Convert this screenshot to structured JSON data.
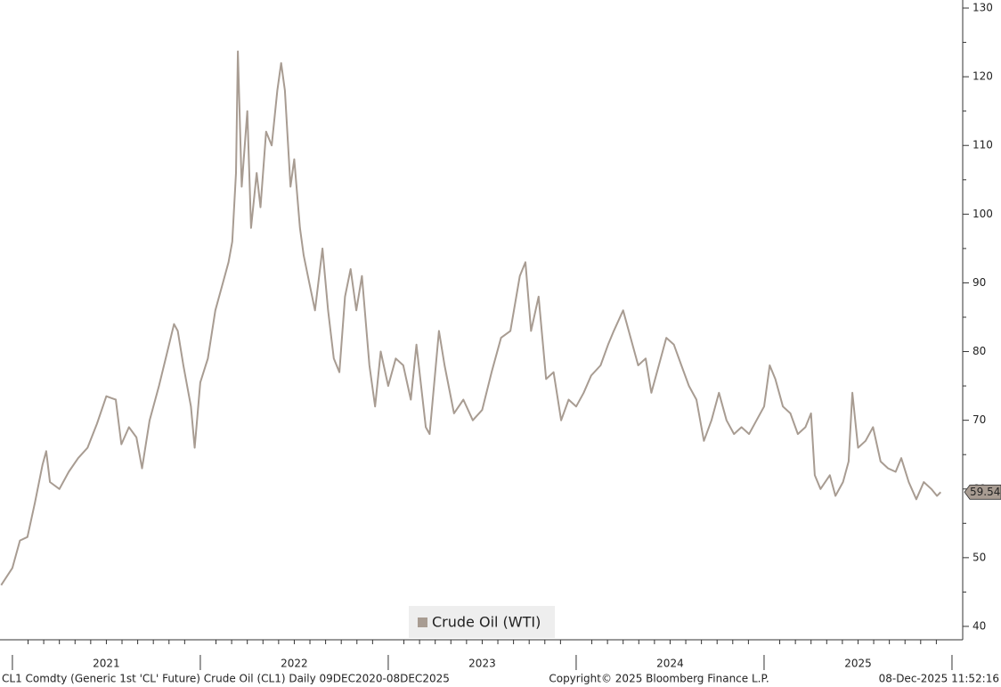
{
  "chart_data": {
    "type": "line",
    "x": [
      2020.94,
      2021.0,
      2021.04,
      2021.08,
      2021.12,
      2021.16,
      2021.18,
      2021.2,
      2021.25,
      2021.3,
      2021.35,
      2021.4,
      2021.45,
      2021.5,
      2021.55,
      2021.58,
      2021.62,
      2021.66,
      2021.69,
      2021.73,
      2021.78,
      2021.82,
      2021.86,
      2021.88,
      2021.91,
      2021.95,
      2021.97,
      2022.0,
      2022.04,
      2022.08,
      2022.12,
      2022.15,
      2022.17,
      2022.19,
      2022.2,
      2022.22,
      2022.25,
      2022.27,
      2022.3,
      2022.32,
      2022.35,
      2022.38,
      2022.41,
      2022.43,
      2022.45,
      2022.48,
      2022.5,
      2022.53,
      2022.55,
      2022.58,
      2022.61,
      2022.65,
      2022.68,
      2022.71,
      2022.74,
      2022.77,
      2022.8,
      2022.83,
      2022.86,
      2022.9,
      2022.93,
      2022.96,
      2023.0,
      2023.04,
      2023.08,
      2023.12,
      2023.15,
      2023.2,
      2023.22,
      2023.25,
      2023.27,
      2023.3,
      2023.35,
      2023.4,
      2023.45,
      2023.5,
      2023.55,
      2023.6,
      2023.65,
      2023.7,
      2023.73,
      2023.76,
      2023.8,
      2023.84,
      2023.88,
      2023.92,
      2023.96,
      2024.0,
      2024.04,
      2024.08,
      2024.13,
      2024.17,
      2024.2,
      2024.25,
      2024.28,
      2024.33,
      2024.37,
      2024.4,
      2024.44,
      2024.48,
      2024.52,
      2024.56,
      2024.6,
      2024.64,
      2024.68,
      2024.72,
      2024.76,
      2024.8,
      2024.84,
      2024.88,
      2024.92,
      2024.96,
      2025.0,
      2025.03,
      2025.06,
      2025.1,
      2025.14,
      2025.18,
      2025.22,
      2025.25,
      2025.27,
      2025.3,
      2025.35,
      2025.38,
      2025.42,
      2025.45,
      2025.47,
      2025.5,
      2025.54,
      2025.58,
      2025.62,
      2025.66,
      2025.7,
      2025.73,
      2025.77,
      2025.81,
      2025.85,
      2025.89,
      2025.92,
      2025.94
    ],
    "series": [
      {
        "name": "Crude Oil (WTI)",
        "color": "#a89c92",
        "values": [
          46,
          48.5,
          52.5,
          53,
          58,
          63.5,
          65.5,
          61,
          60,
          62.5,
          64.5,
          66,
          69.5,
          73.5,
          73,
          66.5,
          69,
          67.5,
          63,
          70,
          75,
          79.5,
          84,
          83,
          78,
          72,
          66,
          75.5,
          79,
          86,
          90,
          93,
          96,
          106,
          123.7,
          104,
          115,
          98,
          106,
          101,
          112,
          110,
          118,
          122,
          118,
          104,
          108,
          98,
          94,
          90,
          86,
          95,
          86,
          79,
          77,
          88,
          92,
          86,
          91,
          78,
          72,
          80,
          75,
          79,
          78,
          73,
          81,
          69,
          68,
          77,
          83,
          78,
          71,
          73,
          70,
          71.5,
          77,
          82,
          83,
          91,
          93,
          83,
          88,
          76,
          77,
          70,
          73,
          72,
          74,
          76.5,
          78,
          81,
          83,
          86,
          83,
          78,
          79,
          74,
          78,
          82,
          81,
          78,
          75,
          73,
          67,
          70,
          74,
          70,
          68,
          69,
          68,
          70,
          72,
          78,
          76,
          72,
          71,
          68,
          69,
          71,
          62,
          60,
          62,
          59,
          61,
          64,
          74,
          66,
          67,
          69,
          64,
          63,
          62.5,
          64.5,
          61,
          58.5,
          61,
          60,
          59,
          59.54
        ]
      }
    ],
    "xlim": [
      2020.934,
      2026.057
    ],
    "xticks": [
      {
        "value": 2021.5,
        "label": "2021"
      },
      {
        "value": 2022.5,
        "label": "2022"
      },
      {
        "value": 2023.5,
        "label": "2023"
      },
      {
        "value": 2024.5,
        "label": "2024"
      },
      {
        "value": 2025.5,
        "label": "2025"
      }
    ],
    "year_starts": [
      2021,
      2022,
      2023,
      2024,
      2025,
      2026
    ],
    "ylim": [
      38.05,
      131.17
    ],
    "yticks": [
      40,
      50,
      60,
      70,
      80,
      90,
      100,
      110,
      120,
      130
    ],
    "legend_position": "bottom",
    "footer_left": "CL1 Comdty (Generic 1st 'CL' Future) Crude Oil (CL1) Daily 09DEC2020-08DEC2025",
    "footer_center": "Copyright© 2025 Bloomberg Finance L.P.",
    "footer_right": "08-Dec-2025 11:52:16"
  }
}
